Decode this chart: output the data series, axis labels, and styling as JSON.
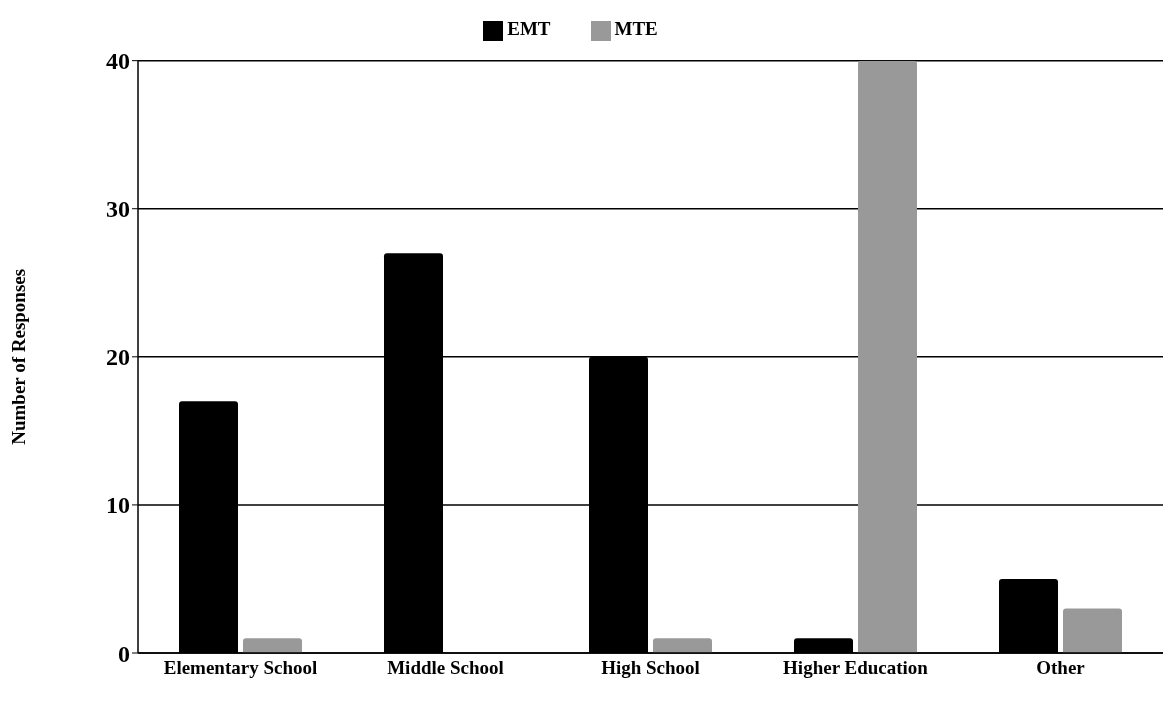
{
  "chart_data": {
    "type": "bar",
    "ylabel": "Number of Responses",
    "categories": [
      "Elementary School",
      "Middle School",
      "High School",
      "Higher Education",
      "Other"
    ],
    "series": [
      {
        "name": "EMT",
        "color": "#000000",
        "values": [
          17,
          27,
          20,
          1,
          5
        ]
      },
      {
        "name": "MTE",
        "color": "#999999",
        "values": [
          1,
          0,
          1,
          40,
          3
        ]
      }
    ],
    "ylim": [
      0,
      40
    ],
    "yticks": [
      0,
      10,
      20,
      30,
      40
    ],
    "grid": "y",
    "legend": "top"
  }
}
